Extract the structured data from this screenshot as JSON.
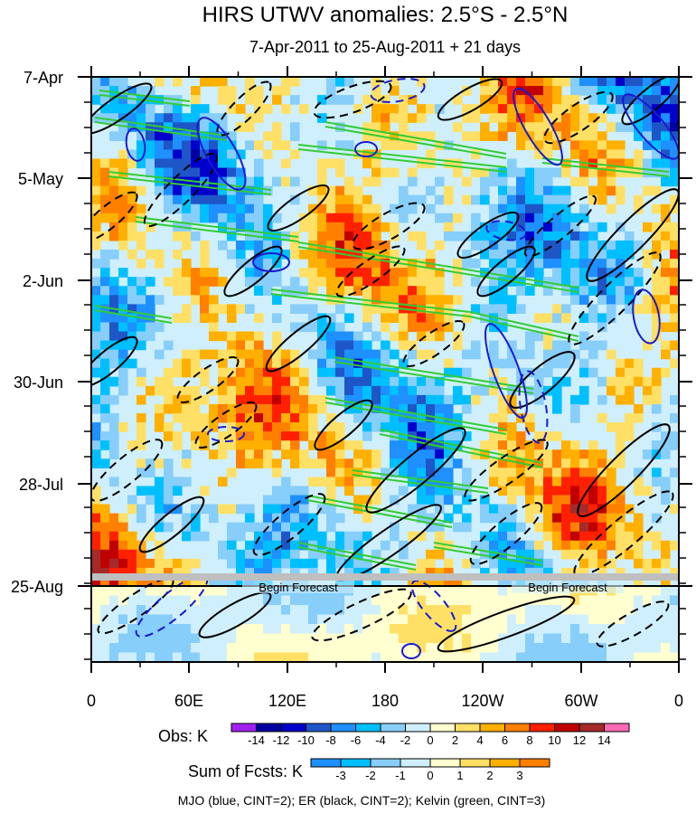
{
  "chart_data": {
    "type": "heatmap",
    "title": "HIRS UTWV anomalies: 2.5°S - 2.5°N",
    "subtitle": "7-Apr-2011 to 25-Aug-2011 + 21 days",
    "x_axis": {
      "label": "",
      "ticks": [
        "0",
        "60E",
        "120E",
        "180",
        "120W",
        "60W",
        "0"
      ],
      "range": [
        0,
        360
      ]
    },
    "y_axis": {
      "label": "",
      "ticks": [
        "7-Apr",
        "5-May",
        "2-Jun",
        "30-Jun",
        "28-Jul",
        "25-Aug"
      ],
      "direction": "time increases downward"
    },
    "forecast": {
      "marker_label_left": "Begin Forecast",
      "marker_label_right": "Begin Forecast",
      "start": "25-Aug"
    },
    "obs_legend": {
      "title": "Obs: K",
      "levels": [
        "-14",
        "-12",
        "-10",
        "-8",
        "-6",
        "-4",
        "-2",
        "0",
        "2",
        "4",
        "6",
        "8",
        "10",
        "12",
        "14"
      ],
      "colors": [
        "#a020f0",
        "#0000a0",
        "#0000cd",
        "#1e56c8",
        "#1e90ff",
        "#00bfff",
        "#87cefa",
        "#cfeffc",
        "#ffffd0",
        "#ffe066",
        "#ffb000",
        "#ff8000",
        "#ff2000",
        "#c00000",
        "#a52a2a",
        "#ff69b4"
      ]
    },
    "fcst_legend": {
      "title": "Sum of Fcsts: K",
      "levels": [
        "-3",
        "-2",
        "-1",
        "0",
        "1",
        "2",
        "3"
      ],
      "colors": [
        "#1e90ff",
        "#00bfff",
        "#87cefa",
        "#cfeffc",
        "#ffffd0",
        "#ffe066",
        "#ffb000",
        "#ff8000"
      ]
    },
    "footer": "MJO (blue, CINT=2); ER (black, CINT=2); Kelvin (green, CINT=3)",
    "series": [
      {
        "name": "MJO",
        "color": "#1a1ad0",
        "contour_interval": 2
      },
      {
        "name": "ER",
        "color": "#000000",
        "contour_interval": 2
      },
      {
        "name": "Kelvin",
        "color": "#33cc33",
        "contour_interval": 3
      }
    ]
  }
}
